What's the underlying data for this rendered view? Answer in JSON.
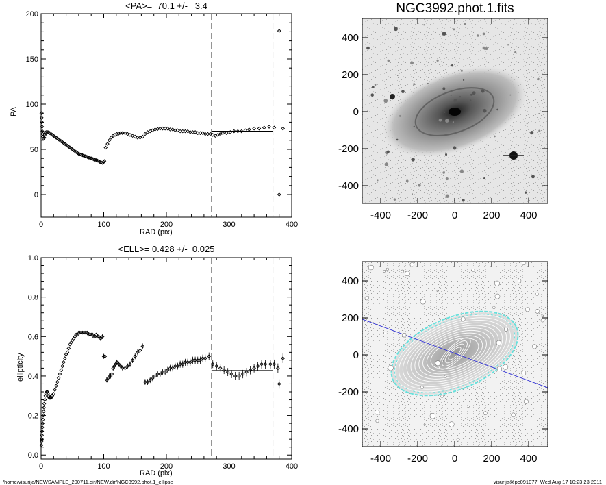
{
  "chart_data": [
    {
      "type": "scatter",
      "title": "<PA>=  70.1 +/-   3.4",
      "xlabel": "RAD (pix)",
      "ylabel": "PA",
      "xlim": [
        0,
        400
      ],
      "ylim": [
        -25,
        200
      ],
      "xticks": [
        "0",
        "100",
        "200",
        "300",
        "400"
      ],
      "yticks": [
        "0",
        "50",
        "100",
        "150",
        "200"
      ],
      "vlines_dashed": [
        272,
        370
      ],
      "mean_line": {
        "x": [
          272,
          370
        ],
        "y": 70.1
      },
      "series": [
        {
          "points": [
            [
              0.5,
              90
            ],
            [
              0.8,
              85
            ],
            [
              1.2,
              80
            ],
            [
              1.6,
              75
            ],
            [
              2.0,
              70
            ],
            [
              2.5,
              67
            ],
            [
              3,
              64
            ],
            [
              4,
              62
            ],
            [
              5,
              63
            ],
            [
              6,
              66
            ],
            [
              7,
              68
            ],
            [
              8,
              69
            ],
            [
              10,
              69
            ],
            [
              12,
              69
            ],
            [
              14,
              68
            ],
            [
              16,
              67
            ],
            [
              18,
              66
            ],
            [
              20,
              65
            ],
            [
              22,
              64
            ],
            [
              24,
              63
            ],
            [
              26,
              62
            ],
            [
              28,
              61
            ],
            [
              30,
              60
            ],
            [
              32,
              59
            ],
            [
              34,
              58
            ],
            [
              36,
              57
            ],
            [
              38,
              56
            ],
            [
              40,
              55
            ],
            [
              42,
              54
            ],
            [
              44,
              53
            ],
            [
              46,
              52
            ],
            [
              48,
              51
            ],
            [
              50,
              50
            ],
            [
              52,
              49
            ],
            [
              54,
              48
            ],
            [
              56,
              47
            ],
            [
              58,
              46
            ],
            [
              60,
              45
            ],
            [
              62,
              44.5
            ],
            [
              64,
              44
            ],
            [
              66,
              43.5
            ],
            [
              68,
              43
            ],
            [
              70,
              42.5
            ],
            [
              72,
              42
            ],
            [
              74,
              41.5
            ],
            [
              76,
              41
            ],
            [
              78,
              40.5
            ],
            [
              80,
              40
            ],
            [
              82,
              39.5
            ],
            [
              84,
              39
            ],
            [
              86,
              38.5
            ],
            [
              88,
              38
            ],
            [
              90,
              37.5
            ],
            [
              92,
              37
            ],
            [
              94,
              36
            ],
            [
              96,
              35.5
            ],
            [
              98,
              35
            ],
            [
              100,
              36
            ],
            [
              101,
              37
            ],
            [
              103,
              52
            ],
            [
              106,
              56
            ],
            [
              109,
              60
            ],
            [
              112,
              63
            ],
            [
              115,
              65
            ],
            [
              118,
              66
            ],
            [
              121,
              67
            ],
            [
              124,
              67.5
            ],
            [
              127,
              68
            ],
            [
              130,
              68
            ],
            [
              134,
              68
            ],
            [
              138,
              67
            ],
            [
              142,
              66
            ],
            [
              146,
              65
            ],
            [
              150,
              64
            ],
            [
              154,
              63
            ],
            [
              158,
              63
            ],
            [
              162,
              64
            ],
            [
              166,
              67
            ],
            [
              170,
              69
            ],
            [
              174,
              70
            ],
            [
              178,
              71
            ],
            [
              182,
              72
            ],
            [
              186,
              72.5
            ],
            [
              190,
              73
            ],
            [
              194,
              73
            ],
            [
              198,
              73
            ],
            [
              202,
              73
            ],
            [
              206,
              72
            ],
            [
              210,
              72
            ],
            [
              214,
              71
            ],
            [
              218,
              71
            ],
            [
              222,
              70
            ],
            [
              226,
              70
            ],
            [
              230,
              70
            ],
            [
              234,
              70
            ],
            [
              238,
              69
            ],
            [
              242,
              69
            ],
            [
              246,
              69
            ],
            [
              250,
              68
            ],
            [
              254,
              68
            ],
            [
              258,
              68
            ],
            [
              262,
              67
            ],
            [
              266,
              67
            ],
            [
              270,
              67
            ],
            [
              274,
              66
            ],
            [
              278,
              65
            ],
            [
              282,
              66
            ],
            [
              286,
              67
            ],
            [
              290,
              68
            ],
            [
              296,
              68
            ],
            [
              302,
              69
            ],
            [
              308,
              70
            ],
            [
              314,
              70
            ],
            [
              320,
              70
            ],
            [
              326,
              71
            ],
            [
              332,
              72
            ],
            [
              340,
              73
            ],
            [
              348,
              73
            ],
            [
              356,
              74
            ],
            [
              364,
              75
            ],
            [
              372,
              74
            ],
            [
              386,
              73
            ]
          ]
        },
        {
          "points": [
            [
              380,
              181
            ],
            [
              380,
              0
            ]
          ]
        }
      ]
    },
    {
      "type": "scatter",
      "title": "<ELL>= 0.428 +/-  0.025",
      "xlabel": "RAD (pix)",
      "ylabel": "ellipticity",
      "xlim": [
        0,
        400
      ],
      "ylim": [
        -0.02,
        1.0
      ],
      "xticks": [
        "0",
        "100",
        "200",
        "300",
        "400"
      ],
      "yticks": [
        "0.0",
        "0.2",
        "0.4",
        "0.6",
        "0.8",
        "1.0"
      ],
      "vlines_dashed": [
        272,
        370
      ],
      "mean_line": {
        "x": [
          272,
          370
        ],
        "y": 0.428
      },
      "series": [
        {
          "points": [
            [
              0.5,
              0.05
            ],
            [
              0.8,
              0.07
            ],
            [
              1,
              0.08
            ],
            [
              1.3,
              0.1
            ],
            [
              1.6,
              0.12
            ],
            [
              2,
              0.14
            ],
            [
              2.5,
              0.16
            ],
            [
              3,
              0.18
            ],
            [
              3.5,
              0.2
            ],
            [
              4,
              0.22
            ],
            [
              4.5,
              0.24
            ],
            [
              5,
              0.26
            ],
            [
              6,
              0.28
            ],
            [
              7,
              0.3
            ],
            [
              8,
              0.31
            ],
            [
              9,
              0.32
            ],
            [
              10,
              0.32
            ],
            [
              11,
              0.31
            ],
            [
              12,
              0.3
            ],
            [
              13,
              0.29
            ],
            [
              14,
              0.29
            ],
            [
              15,
              0.29
            ],
            [
              16,
              0.29
            ],
            [
              17,
              0.3
            ],
            [
              18,
              0.3
            ],
            [
              20,
              0.31
            ],
            [
              22,
              0.33
            ],
            [
              24,
              0.35
            ],
            [
              26,
              0.37
            ],
            [
              28,
              0.39
            ],
            [
              30,
              0.41
            ],
            [
              32,
              0.43
            ],
            [
              34,
              0.45
            ],
            [
              36,
              0.47
            ],
            [
              38,
              0.49
            ],
            [
              40,
              0.51
            ],
            [
              42,
              0.52
            ],
            [
              44,
              0.54
            ],
            [
              46,
              0.56
            ],
            [
              48,
              0.57
            ],
            [
              50,
              0.58
            ],
            [
              52,
              0.59
            ],
            [
              54,
              0.6
            ],
            [
              56,
              0.61
            ],
            [
              58,
              0.61
            ],
            [
              60,
              0.62
            ],
            [
              62,
              0.62
            ],
            [
              64,
              0.62
            ],
            [
              66,
              0.62
            ],
            [
              68,
              0.62
            ],
            [
              70,
              0.62
            ],
            [
              72,
              0.62
            ],
            [
              74,
              0.62
            ],
            [
              76,
              0.61
            ],
            [
              78,
              0.61
            ],
            [
              80,
              0.61
            ],
            [
              82,
              0.61
            ],
            [
              84,
              0.6
            ],
            [
              86,
              0.6
            ],
            [
              88,
              0.61
            ],
            [
              90,
              0.6
            ],
            [
              92,
              0.6
            ],
            [
              95,
              0.59
            ],
            [
              98,
              0.6
            ],
            [
              100,
              0.5
            ],
            [
              102,
              0.5
            ],
            [
              105,
              0.38
            ],
            [
              107,
              0.39
            ],
            [
              109,
              0.4
            ],
            [
              111,
              0.4
            ],
            [
              113,
              0.41
            ],
            [
              115,
              0.44
            ],
            [
              117,
              0.45
            ],
            [
              119,
              0.46
            ],
            [
              121,
              0.47
            ],
            [
              124,
              0.46
            ],
            [
              127,
              0.45
            ],
            [
              130,
              0.44
            ],
            [
              134,
              0.44
            ],
            [
              138,
              0.45
            ],
            [
              142,
              0.46
            ],
            [
              146,
              0.48
            ],
            [
              150,
              0.5
            ],
            [
              154,
              0.52
            ],
            [
              158,
              0.53
            ],
            [
              162,
              0.55
            ],
            [
              166,
              0.37
            ],
            [
              170,
              0.37
            ],
            [
              174,
              0.38
            ],
            [
              178,
              0.39
            ],
            [
              182,
              0.4
            ],
            [
              186,
              0.41
            ],
            [
              190,
              0.41
            ],
            [
              194,
              0.42
            ],
            [
              198,
              0.42
            ],
            [
              202,
              0.43
            ],
            [
              206,
              0.44
            ],
            [
              210,
              0.44
            ],
            [
              214,
              0.45
            ],
            [
              218,
              0.45
            ],
            [
              222,
              0.46
            ],
            [
              226,
              0.46
            ],
            [
              230,
              0.47
            ],
            [
              234,
              0.47
            ],
            [
              238,
              0.47
            ],
            [
              242,
              0.48
            ],
            [
              246,
              0.48
            ],
            [
              250,
              0.48
            ],
            [
              254,
              0.48
            ],
            [
              258,
              0.49
            ],
            [
              262,
              0.49
            ],
            [
              268,
              0.5
            ],
            [
              274,
              0.46
            ],
            [
              280,
              0.45
            ],
            [
              286,
              0.44
            ],
            [
              292,
              0.43
            ],
            [
              298,
              0.42
            ],
            [
              304,
              0.41
            ],
            [
              310,
              0.4
            ],
            [
              316,
              0.4
            ],
            [
              322,
              0.41
            ],
            [
              328,
              0.42
            ],
            [
              334,
              0.43
            ],
            [
              340,
              0.44
            ],
            [
              346,
              0.45
            ],
            [
              352,
              0.46
            ],
            [
              358,
              0.46
            ],
            [
              366,
              0.46
            ],
            [
              372,
              0.46
            ],
            [
              378,
              0.44
            ],
            [
              386,
              0.49
            ]
          ]
        },
        {
          "points": [
            [
              380,
              0.36
            ]
          ]
        }
      ]
    }
  ],
  "images": [
    {
      "title": "NGC3992.phot.1.fits",
      "xticks": [
        "-400",
        "-200",
        "0",
        "200",
        "400"
      ],
      "yticks": [
        "400",
        "200",
        "0",
        "-200",
        "-400"
      ]
    },
    {
      "title": "",
      "xticks": [
        "-400",
        "-200",
        "0",
        "200",
        "400"
      ],
      "yticks": [
        "400",
        "200",
        "0",
        "-200",
        "-400"
      ],
      "major_axis_color": "#3a3ad6",
      "outer_isophote_color": "#67e0dc"
    }
  ],
  "footer": {
    "left": "/home/visurija/NEWSAMPLE_200711.dir/NEW.dir/NGC3992.phot.1_ellipse",
    "right": "visurija@pc091077  Wed Aug 17 10:23:23 2011"
  }
}
